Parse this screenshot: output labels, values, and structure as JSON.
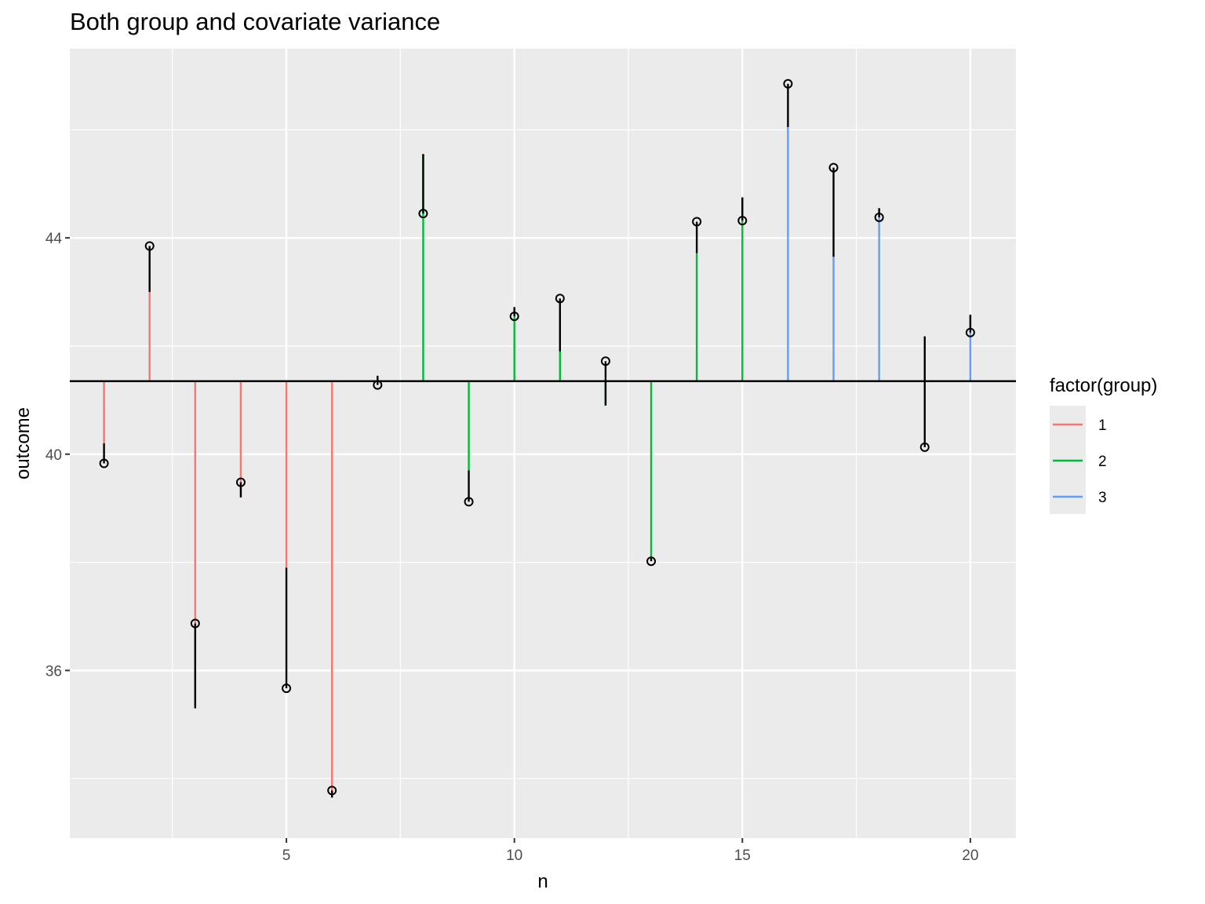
{
  "chart_data": {
    "type": "segment",
    "title": "Both group and covariate variance",
    "xlabel": "n",
    "ylabel": "outcome",
    "xlim": [
      0.25,
      21.0
    ],
    "ylim": [
      32.9,
      47.5
    ],
    "x_ticks": [
      5,
      10,
      15,
      20
    ],
    "y_ticks": [
      36,
      40,
      44
    ],
    "grand_mean": 41.35,
    "grid": true,
    "legend": {
      "title": "factor(group)",
      "position": "right",
      "entries": [
        {
          "label": "1",
          "color": "#F8766D"
        },
        {
          "label": "2",
          "color": "#00BA38"
        },
        {
          "label": "3",
          "color": "#619CFF"
        }
      ]
    },
    "points": [
      {
        "n": 1,
        "group": "1",
        "outcome": 39.83,
        "group_mean": 40.2
      },
      {
        "n": 2,
        "group": "1",
        "outcome": 43.85,
        "group_mean": 43.0
      },
      {
        "n": 3,
        "group": "1",
        "outcome": 36.87,
        "group_mean": 35.3
      },
      {
        "n": 4,
        "group": "1",
        "outcome": 39.48,
        "group_mean": 39.2
      },
      {
        "n": 5,
        "group": "1",
        "outcome": 35.67,
        "group_mean": 37.9
      },
      {
        "n": 6,
        "group": "1",
        "outcome": 33.78,
        "group_mean": 33.65
      },
      {
        "n": 7,
        "group": "1",
        "outcome": 41.28,
        "group_mean": 41.45
      },
      {
        "n": 8,
        "group": "2",
        "outcome": 44.45,
        "group_mean": 45.55
      },
      {
        "n": 9,
        "group": "2",
        "outcome": 39.12,
        "group_mean": 39.7
      },
      {
        "n": 10,
        "group": "2",
        "outcome": 42.55,
        "group_mean": 42.72
      },
      {
        "n": 11,
        "group": "2",
        "outcome": 42.88,
        "group_mean": 41.9
      },
      {
        "n": 12,
        "group": "2",
        "outcome": 41.72,
        "group_mean": 40.9
      },
      {
        "n": 13,
        "group": "2",
        "outcome": 38.02,
        "group_mean": 38.1
      },
      {
        "n": 14,
        "group": "2",
        "outcome": 44.3,
        "group_mean": 43.72
      },
      {
        "n": 15,
        "group": "2",
        "outcome": 44.32,
        "group_mean": 44.75
      },
      {
        "n": 16,
        "group": "3",
        "outcome": 46.85,
        "group_mean": 46.05
      },
      {
        "n": 17,
        "group": "3",
        "outcome": 45.3,
        "group_mean": 43.65
      },
      {
        "n": 18,
        "group": "3",
        "outcome": 44.38,
        "group_mean": 44.55
      },
      {
        "n": 19,
        "group": "3",
        "outcome": 40.13,
        "group_mean": 42.18
      },
      {
        "n": 20,
        "group": "3",
        "outcome": 42.25,
        "group_mean": 42.58
      }
    ]
  }
}
